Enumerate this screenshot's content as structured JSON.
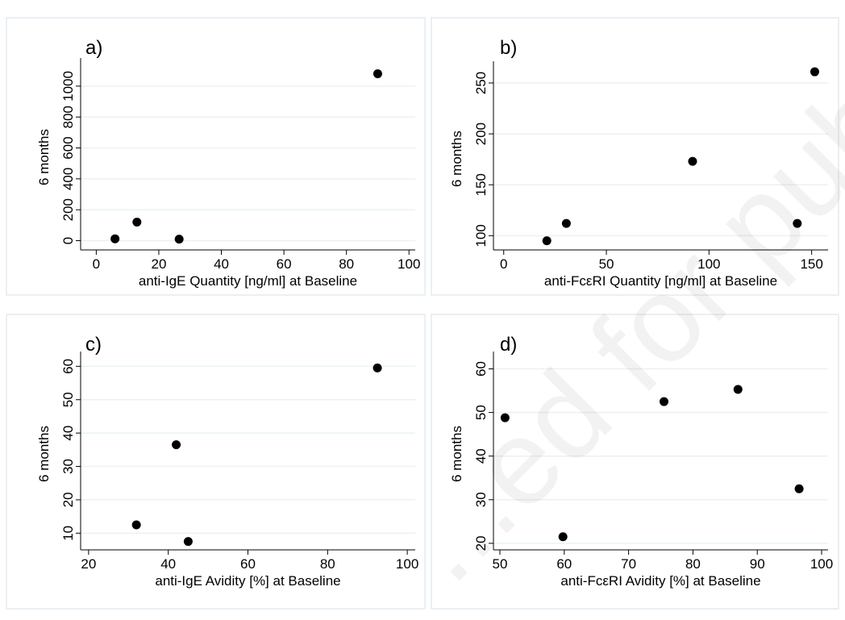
{
  "watermark": "...ed for publica...",
  "chart_data": [
    {
      "type": "scatter",
      "panel_label": "a)",
      "xlabel": "anti-IgE Quantity [ng/ml] at Baseline",
      "ylabel": "6 months",
      "xlim": [
        -5,
        102
      ],
      "ylim": [
        -60,
        1140
      ],
      "xticks": [
        0,
        20,
        40,
        60,
        80,
        100
      ],
      "yticks": [
        0,
        200,
        400,
        600,
        800,
        1000
      ],
      "grid": true,
      "x": [
        6,
        13,
        26.5,
        90
      ],
      "y": [
        12,
        120,
        10,
        1080
      ]
    },
    {
      "type": "scatter",
      "panel_label": "b)",
      "xlabel": "anti-FcεRI Quantity [ng/ml] at Baseline",
      "ylabel": "6 months",
      "xlim": [
        -5,
        158
      ],
      "ylim": [
        86,
        265
      ],
      "xticks": [
        0,
        50,
        100,
        150
      ],
      "yticks": [
        100,
        150,
        200,
        250
      ],
      "grid": true,
      "x": [
        21,
        30.5,
        92,
        143,
        151.5
      ],
      "y": [
        95,
        112,
        173,
        112,
        261
      ]
    },
    {
      "type": "scatter",
      "panel_label": "c)",
      "xlabel": "anti-IgE Avidity [%] at Baseline",
      "ylabel": "6 months",
      "xlim": [
        18,
        102
      ],
      "ylim": [
        5,
        62.5
      ],
      "xticks": [
        20,
        40,
        60,
        80,
        100
      ],
      "yticks": [
        10,
        20,
        30,
        40,
        50,
        60
      ],
      "grid": true,
      "x": [
        32,
        42,
        45,
        92.5
      ],
      "y": [
        12.5,
        36.5,
        7.5,
        59.5
      ]
    },
    {
      "type": "scatter",
      "panel_label": "d)",
      "xlabel": "anti-FcεRI Avidity [%] at Baseline",
      "ylabel": "6 months",
      "xlim": [
        49,
        101
      ],
      "ylim": [
        18.5,
        62.5
      ],
      "xticks": [
        50,
        60,
        70,
        80,
        90,
        100
      ],
      "yticks": [
        20,
        30,
        40,
        50,
        60
      ],
      "grid": true,
      "x": [
        50.8,
        59.8,
        75.5,
        87,
        96.5
      ],
      "y": [
        48.8,
        21.5,
        52.5,
        55.3,
        32.5
      ]
    }
  ]
}
